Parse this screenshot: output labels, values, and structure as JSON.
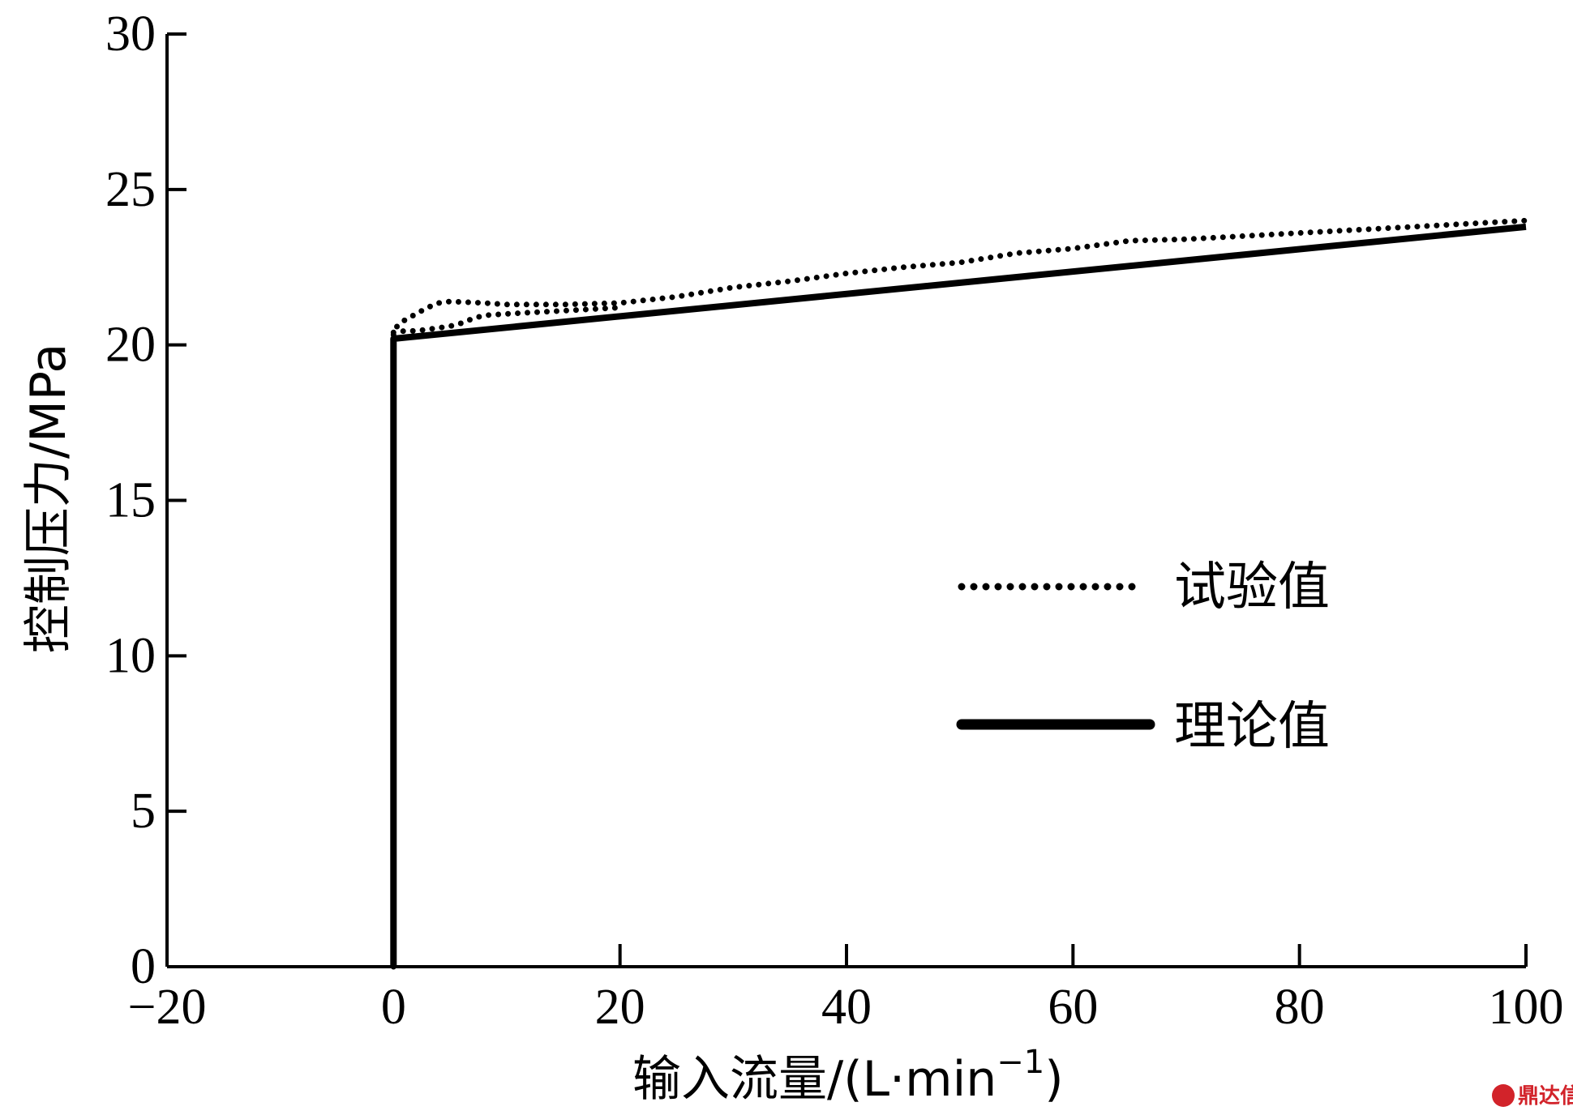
{
  "chart_data": {
    "type": "line",
    "title": "",
    "xlabel": "输入流量/(L·min",
    "xlabel_superscript": "−1",
    "xlabel_close": ")",
    "ylabel": "控制压力/MPa",
    "xlim": [
      -20,
      100
    ],
    "ylim": [
      0,
      30
    ],
    "xticks": [
      -20,
      0,
      20,
      40,
      60,
      80,
      100
    ],
    "xtick_labels": [
      "−20",
      "0",
      "20",
      "40",
      "60",
      "80",
      "100"
    ],
    "yticks": [
      0,
      5,
      10,
      15,
      20,
      25,
      30
    ],
    "ytick_labels": [
      "0",
      "5",
      "10",
      "15",
      "20",
      "25",
      "30"
    ],
    "grid": false,
    "legend_position": "center-right",
    "series": [
      {
        "name": "试验值",
        "style": "dotted",
        "color": "#000000",
        "x": [
          0,
          0,
          1,
          2,
          3,
          4,
          5,
          6,
          8,
          10,
          15,
          20,
          25,
          30,
          35,
          40,
          45,
          50,
          55,
          60,
          65,
          70,
          75,
          80,
          85,
          90,
          95,
          100
        ],
        "y": [
          0,
          20.5,
          20.8,
          21.0,
          21.2,
          21.35,
          21.4,
          21.38,
          21.35,
          21.3,
          21.3,
          21.35,
          21.55,
          21.85,
          22.05,
          22.3,
          22.5,
          22.65,
          22.95,
          23.1,
          23.35,
          23.4,
          23.5,
          23.6,
          23.7,
          23.8,
          23.9,
          24.0
        ]
      },
      {
        "name": "试验值",
        "style": "dotted",
        "color": "#000000",
        "x": [
          0,
          1,
          2,
          3,
          4,
          5,
          6,
          7,
          8,
          10,
          15,
          20
        ],
        "y": [
          20.4,
          20.45,
          20.45,
          20.5,
          20.55,
          20.6,
          20.7,
          20.85,
          20.95,
          21.0,
          21.1,
          21.2
        ]
      },
      {
        "name": "理论值",
        "style": "solid",
        "color": "#000000",
        "x": [
          0,
          0,
          100
        ],
        "y": [
          0,
          20.2,
          23.8
        ]
      }
    ],
    "legend": [
      {
        "label": "试验值",
        "style": "dotted"
      },
      {
        "label": "理论值",
        "style": "solid"
      }
    ]
  },
  "watermark": {
    "text": "鼎达信",
    "logo": "dingdaxin-logo"
  }
}
